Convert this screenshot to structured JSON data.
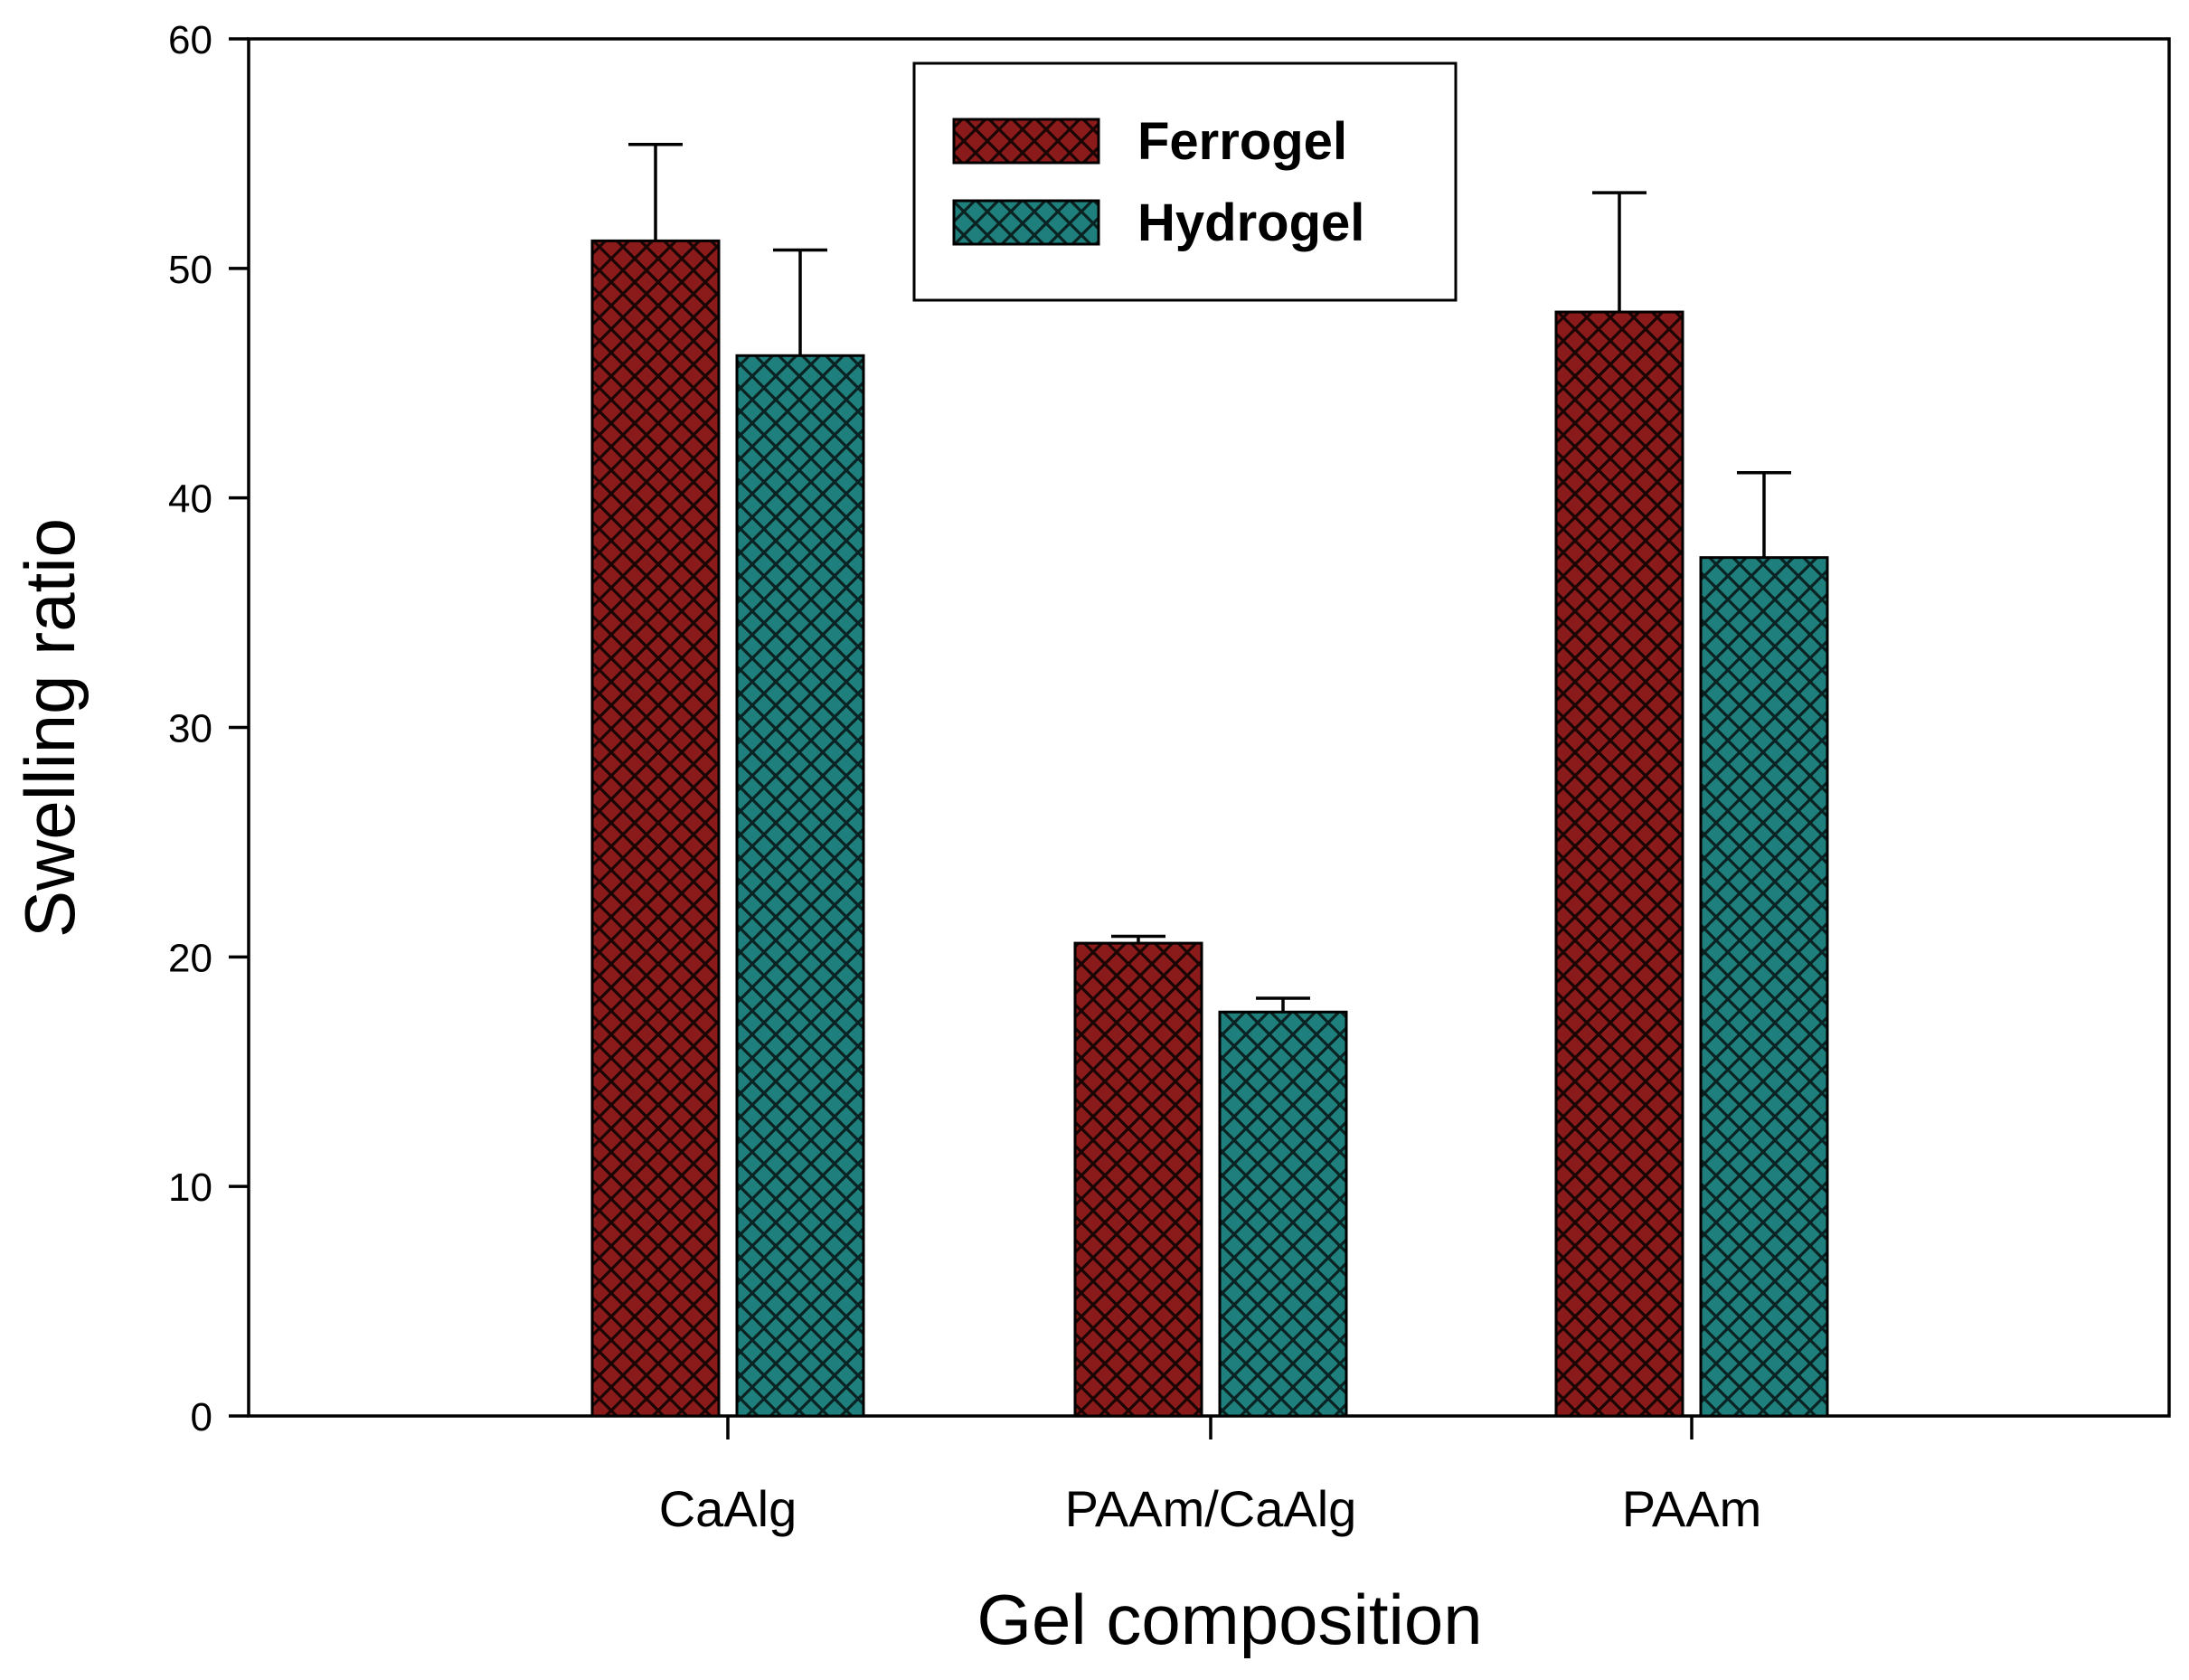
{
  "chart_data": {
    "type": "bar",
    "title": "",
    "xlabel": "Gel composition",
    "ylabel": "Swelling ratio",
    "ylim": [
      0,
      60
    ],
    "yticks": [
      0,
      10,
      20,
      30,
      40,
      50,
      60
    ],
    "categories": [
      "CaAlg",
      "PAAm/CaAlg",
      "PAAm"
    ],
    "series": [
      {
        "name": "Ferrogel",
        "color": "#8b1a1a",
        "pattern": "crosshatch",
        "values": [
          51.2,
          20.6,
          48.1
        ],
        "error": [
          4.2,
          0.3,
          5.2
        ]
      },
      {
        "name": "Hydrogel",
        "color": "#1f7f7c",
        "pattern": "crosshatch",
        "values": [
          46.2,
          17.6,
          37.4
        ],
        "error": [
          4.6,
          0.6,
          3.7
        ]
      }
    ],
    "error_bars": "upper",
    "legend_position": "top-center",
    "grid": false
  }
}
